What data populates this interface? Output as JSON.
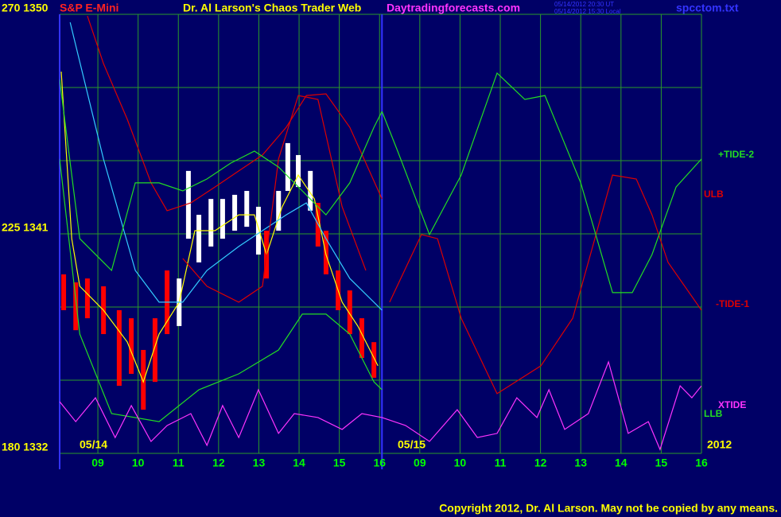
{
  "chart_data": {
    "type": "line",
    "instrument": "S&P E-Mini",
    "title": "Dr. Al Larson's Chaos Trader Web",
    "site": "Daytradingforecasts.com",
    "time_ut": "05/14/2012 20:30 UT",
    "time_local": "05/14/2012 15:30 Local",
    "file": "spcctom.txt",
    "copyright": "Copyright 2012, Dr. Al Larson. May not be copied by any means.",
    "date_labels": [
      "05/14",
      "05/15",
      "2012"
    ],
    "xlim": [
      0.05,
      16
    ],
    "xticks": [
      {
        "value": 1,
        "label": "09"
      },
      {
        "value": 2,
        "label": "10"
      },
      {
        "value": 3,
        "label": "11"
      },
      {
        "value": 4,
        "label": "12"
      },
      {
        "value": 5,
        "label": "13"
      },
      {
        "value": 6,
        "label": "14"
      },
      {
        "value": 7,
        "label": "15"
      },
      {
        "value": 8,
        "label": "16"
      },
      {
        "value": 9,
        "label": "09"
      },
      {
        "value": 10,
        "label": "10"
      },
      {
        "value": 11,
        "label": "11"
      },
      {
        "value": 12,
        "label": "12"
      },
      {
        "value": 13,
        "label": "13"
      },
      {
        "value": 14,
        "label": "14"
      },
      {
        "value": 15,
        "label": "15"
      },
      {
        "value": 16,
        "label": "16"
      }
    ],
    "ylim": [
      1332,
      1350
    ],
    "yticks": [
      {
        "value": 1350,
        "label": "270 1350"
      },
      {
        "value": 1341,
        "label": "225 1341"
      },
      {
        "value": 1332,
        "label": "180 1332"
      }
    ],
    "grid_lines": [
      1335,
      1338,
      1344,
      1347
    ],
    "grid": true,
    "grid_color": "#2a9a2a",
    "day_separators": [
      0.05,
      8.06
    ],
    "bars": {
      "x": [
        0.15,
        0.45,
        0.74,
        1.14,
        1.53,
        1.83,
        2.13,
        2.42,
        2.72,
        3.02,
        3.25,
        3.51,
        3.81,
        4.1,
        4.4,
        4.7,
        4.99,
        5.19,
        5.49,
        5.72,
        5.98,
        6.28,
        6.47,
        6.67,
        6.97,
        7.26,
        7.56,
        7.86
      ],
      "high": [
        1339.34,
        1339.01,
        1339.17,
        1338.85,
        1337.87,
        1337.54,
        1336.24,
        1337.54,
        1339.5,
        1339.17,
        1343.58,
        1341.78,
        1342.43,
        1342.43,
        1342.6,
        1342.76,
        1342.11,
        1341.13,
        1342.76,
        1344.72,
        1344.23,
        1343.58,
        1342.27,
        1341.13,
        1339.5,
        1338.68,
        1337.54,
        1336.56
      ],
      "low": [
        1337.87,
        1337.05,
        1337.54,
        1336.89,
        1334.77,
        1335.26,
        1333.79,
        1334.93,
        1336.89,
        1337.22,
        1340.8,
        1339.83,
        1340.48,
        1340.8,
        1341.13,
        1341.29,
        1340.15,
        1339.17,
        1341.13,
        1342.76,
        1342.92,
        1341.95,
        1340.48,
        1339.34,
        1337.87,
        1336.89,
        1335.91,
        1335.1
      ],
      "colors": [
        "#ff0000",
        "#ff0000",
        "#ff0000",
        "#ff0000",
        "#ff0000",
        "#ff0000",
        "#ff0000",
        "#ff0000",
        "#ff0000",
        "#ffffff",
        "#ffffff",
        "#ffffff",
        "#ffffff",
        "#ffffff",
        "#ffffff",
        "#ffffff",
        "#ffffff",
        "#ff0000",
        "#ffffff",
        "#ffffff",
        "#ffffff",
        "#ffffff",
        "#ff0000",
        "#ff0000",
        "#ff0000",
        "#ff0000",
        "#ff0000",
        "#ff0000"
      ]
    },
    "series": [
      {
        "color": "#ffff00",
        "x": [
          0.09,
          0.35,
          0.55,
          1.14,
          1.73,
          2.13,
          2.52,
          3.02,
          3.41,
          3.91,
          4.5,
          4.89,
          5.19,
          5.58,
          5.98,
          6.38,
          6.67,
          7.07,
          7.46,
          7.96
        ],
        "values": [
          1347.65,
          1340.8,
          1338.85,
          1337.87,
          1336.57,
          1334.93,
          1336.89,
          1338.2,
          1341.13,
          1341.13,
          1341.78,
          1341.78,
          1340.15,
          1342.11,
          1343.41,
          1342.43,
          1340.15,
          1338.2,
          1337.22,
          1335.59
        ]
      },
      {
        "color": "#33ccff",
        "x": [
          0.31,
          1.14,
          1.93,
          2.52,
          3.11,
          3.71,
          4.5,
          5.09,
          5.68,
          6.18,
          6.67,
          7.26,
          8.06
        ],
        "values": [
          1349.67,
          1344.07,
          1339.5,
          1338.2,
          1338.2,
          1339.5,
          1340.48,
          1341.13,
          1341.78,
          1342.27,
          1340.8,
          1339.17,
          1337.87
        ]
      },
      {
        "name": "ULB",
        "color": "#dd0000",
        "x": [
          0.74,
          1.14,
          1.73,
          2.32,
          2.72,
          3.31,
          3.91,
          4.5,
          5.09,
          5.68,
          6.18,
          6.67,
          7.26,
          8.06
        ],
        "values": [
          1349.93,
          1347.98,
          1345.7,
          1343.09,
          1341.95,
          1342.27,
          1342.92,
          1343.58,
          1344.23,
          1345.37,
          1346.67,
          1346.74,
          1345.37,
          1342.43
        ]
      },
      {
        "color": "#dd0000",
        "x": [
          3.11,
          3.71,
          4.5,
          5.09,
          5.49,
          5.98,
          6.47,
          7.07,
          7.66
        ],
        "values": [
          1339.99,
          1338.85,
          1338.2,
          1338.85,
          1344.07,
          1346.67,
          1346.51,
          1342.11,
          1339.5
        ]
      },
      {
        "color": "#22dd22",
        "x": [
          0.05,
          0.55,
          1.34,
          1.93,
          2.52,
          3.11,
          3.71,
          4.3,
          4.89,
          5.49,
          6.08,
          6.67,
          7.26,
          7.86,
          8.06
        ],
        "values": [
          1347.33,
          1340.8,
          1339.5,
          1343.09,
          1343.09,
          1342.76,
          1343.25,
          1343.9,
          1344.39,
          1343.74,
          1342.76,
          1341.78,
          1343.09,
          1345.37,
          1346.02
        ]
      },
      {
        "name": "LLB",
        "color": "#22dd22",
        "x": [
          0.05,
          0.55,
          1.34,
          2.52,
          3.51,
          4.5,
          5.49,
          6.08,
          6.67,
          7.26,
          7.86,
          8.06
        ],
        "values": [
          1344.07,
          1336.89,
          1333.63,
          1333.3,
          1334.61,
          1335.26,
          1336.24,
          1337.71,
          1337.71,
          1336.89,
          1334.93,
          1334.61
        ]
      },
      {
        "name": "-TIDE-1",
        "color": "#dd0000",
        "x": [
          8.25,
          9.04,
          9.44,
          10.03,
          10.92,
          12.01,
          12.8,
          13.79,
          14.38,
          14.77,
          15.17,
          16.0
        ],
        "values": [
          1338.2,
          1340.97,
          1340.8,
          1337.54,
          1334.45,
          1335.59,
          1337.54,
          1343.41,
          1343.25,
          1341.78,
          1339.83,
          1337.87
        ]
      },
      {
        "name": "+TIDE-2",
        "color": "#22dd22",
        "x": [
          8.06,
          8.45,
          9.24,
          10.03,
          10.92,
          11.61,
          12.11,
          13.0,
          13.79,
          14.28,
          14.77,
          15.37,
          16.0
        ],
        "values": [
          1346.02,
          1344.39,
          1340.97,
          1343.41,
          1347.59,
          1346.51,
          1346.67,
          1343.09,
          1338.59,
          1338.59,
          1340.15,
          1342.92,
          1344.07
        ]
      },
      {
        "name": "XTIDE",
        "color": "#ff33ff",
        "x": [
          0.05,
          0.45,
          0.94,
          1.43,
          1.83,
          2.32,
          2.72,
          3.31,
          3.71,
          4.1,
          4.5,
          4.99,
          5.49,
          5.88,
          6.47,
          7.07,
          7.56,
          8.06,
          8.65,
          9.24,
          9.93,
          10.43,
          10.92,
          11.41,
          11.91,
          12.21,
          12.6,
          13.19,
          13.69,
          14.18,
          14.68,
          14.97,
          15.47,
          15.76,
          16.0
        ],
        "values": [
          1334.12,
          1333.3,
          1334.28,
          1332.65,
          1333.96,
          1332.49,
          1333.14,
          1333.63,
          1332.33,
          1333.96,
          1332.65,
          1334.61,
          1332.82,
          1333.63,
          1333.47,
          1332.98,
          1333.63,
          1333.47,
          1333.14,
          1332.49,
          1333.79,
          1332.65,
          1332.82,
          1334.28,
          1333.47,
          1334.61,
          1332.98,
          1333.63,
          1335.75,
          1332.82,
          1333.3,
          1332.16,
          1334.77,
          1334.28,
          1334.77
        ]
      }
    ]
  }
}
